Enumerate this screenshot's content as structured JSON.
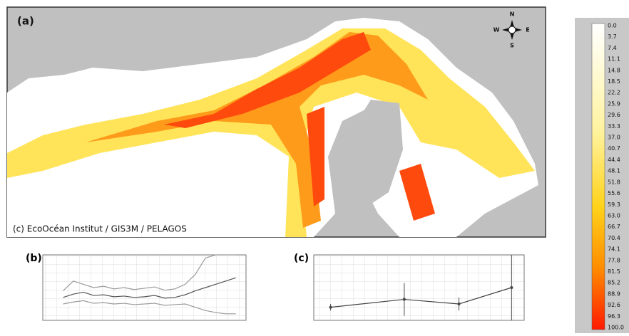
{
  "map": {
    "label": "(a)",
    "credit": "(c) EcoOcéan Institut / GIS3M / PELAGOS",
    "compass": {
      "n": "N",
      "e": "E",
      "s": "S",
      "w": "W"
    }
  },
  "legend": {
    "labels": [
      "0.0",
      "3.7",
      "7.4",
      "11.1",
      "14.8",
      "18.5",
      "22.2",
      "25.9",
      "29.6",
      "33.3",
      "37.0",
      "40.7",
      "44.4",
      "48.1",
      "51.8",
      "55.6",
      "59.3",
      "63.0",
      "66.7",
      "70.4",
      "74.1",
      "77.8",
      "81.5",
      "85.2",
      "88.9",
      "92.6",
      "96.3",
      "100.0"
    ]
  },
  "chart_data": [
    {
      "label": "(b)",
      "type": "line",
      "xlim": [
        0,
        100
      ],
      "ylim": [
        0,
        10
      ],
      "x": [
        10,
        15,
        20,
        25,
        30,
        35,
        40,
        45,
        50,
        55,
        60,
        65,
        70,
        75,
        80,
        85,
        90,
        95
      ],
      "series": [
        {
          "color": "#9a9a9a",
          "values": [
            4.5,
            6.0,
            5.5,
            5.0,
            5.2,
            4.8,
            5.0,
            4.7,
            4.9,
            5.1,
            4.6,
            4.8,
            5.5,
            7.0,
            9.5,
            10,
            10,
            10
          ]
        },
        {
          "color": "#555555",
          "values": [
            3.5,
            4.0,
            4.3,
            3.8,
            3.9,
            3.6,
            3.7,
            3.5,
            3.6,
            3.8,
            3.4,
            3.5,
            3.9,
            4.5,
            5.0,
            5.5,
            6.0,
            6.5
          ]
        },
        {
          "color": "#9a9a9a",
          "values": [
            2.5,
            2.8,
            3.0,
            2.6,
            2.7,
            2.5,
            2.6,
            2.4,
            2.5,
            2.6,
            2.3,
            2.4,
            2.5,
            2.0,
            1.5,
            1.2,
            1.0,
            1.0
          ]
        }
      ]
    },
    {
      "label": "(c)",
      "type": "errorbar",
      "xlim": [
        0,
        100
      ],
      "ylim": [
        0,
        10
      ],
      "x": [
        8,
        43,
        69,
        94
      ],
      "series": [
        {
          "color": "#444444",
          "values": [
            2.0,
            3.2,
            2.5,
            5.0
          ],
          "errors": [
            0.5,
            2.5,
            1.0,
            5.0
          ]
        }
      ]
    }
  ]
}
